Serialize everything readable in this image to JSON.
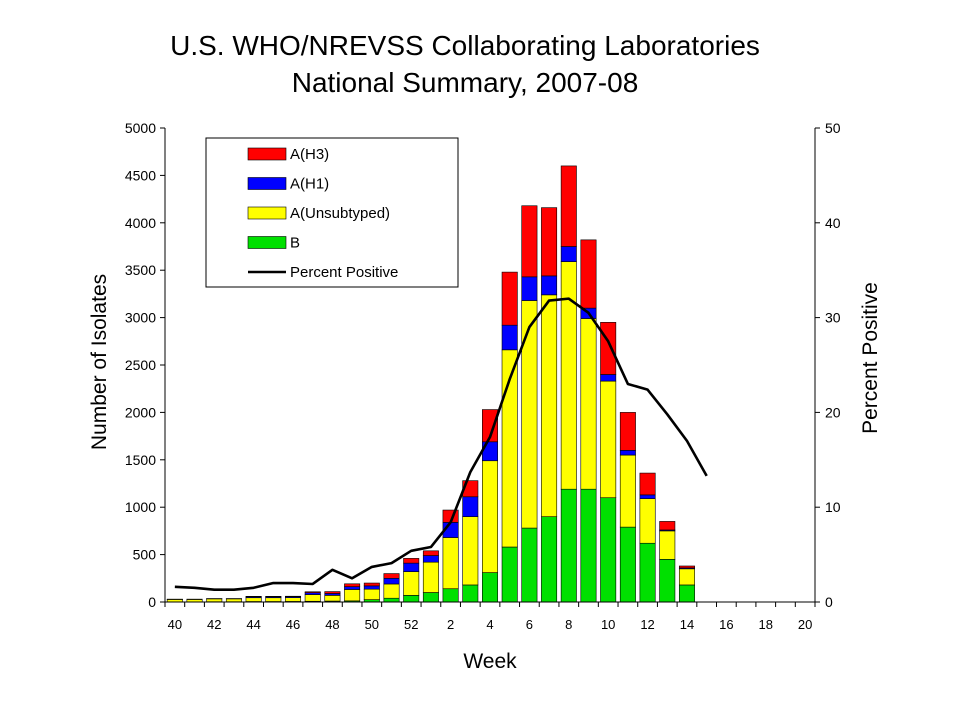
{
  "chart_data": {
    "type": "bar",
    "title": "U.S. WHO/NREVSS Collaborating Laboratories",
    "subtitle": "National Summary, 2007-08",
    "xlabel": "Week",
    "ylabel": "Number of Isolates",
    "y2label": "Percent Positive",
    "ylim": [
      0,
      5000
    ],
    "y2lim": [
      0,
      50
    ],
    "yticks": [
      "0",
      "500",
      "1000",
      "1500",
      "2000",
      "2500",
      "3000",
      "3500",
      "4000",
      "4500",
      "5000"
    ],
    "y2ticks": [
      "0",
      "10",
      "20",
      "30",
      "40",
      "50"
    ],
    "xtick_labels": [
      "40",
      "42",
      "44",
      "46",
      "48",
      "50",
      "52",
      "2",
      "4",
      "6",
      "8",
      "10",
      "12",
      "14",
      "16",
      "18",
      "20"
    ],
    "stacked": true,
    "categories": [
      "40",
      "41",
      "42",
      "43",
      "44",
      "45",
      "46",
      "47",
      "48",
      "49",
      "50",
      "51",
      "52",
      "1",
      "2",
      "3",
      "4",
      "5",
      "6",
      "7",
      "8",
      "9",
      "10",
      "11",
      "12",
      "13",
      "14",
      "15",
      "16",
      "17",
      "18",
      "19",
      "20"
    ],
    "series": [
      {
        "name": "B",
        "color": "#00e000",
        "values": [
          2,
          2,
          3,
          3,
          5,
          5,
          6,
          8,
          10,
          12,
          25,
          40,
          70,
          100,
          140,
          180,
          310,
          580,
          780,
          900,
          1190,
          1190,
          1100,
          790,
          620,
          450,
          180,
          0,
          0,
          0,
          0,
          0,
          0
        ]
      },
      {
        "name": "A(Unsubtyped)",
        "color": "#ffff00",
        "values": [
          25,
          25,
          30,
          30,
          40,
          40,
          40,
          70,
          60,
          120,
          110,
          150,
          250,
          320,
          540,
          720,
          1180,
          2080,
          2400,
          2340,
          2400,
          1800,
          1230,
          760,
          470,
          300,
          170,
          0,
          0,
          0,
          0,
          0,
          0
        ]
      },
      {
        "name": "A(H1)",
        "color": "#0000ff",
        "values": [
          2,
          2,
          2,
          2,
          10,
          10,
          10,
          20,
          20,
          30,
          35,
          60,
          90,
          70,
          160,
          210,
          200,
          260,
          250,
          200,
          160,
          110,
          70,
          50,
          40,
          10,
          10,
          0,
          0,
          0,
          0,
          0,
          0
        ]
      },
      {
        "name": "A(H3)",
        "color": "#ff0000",
        "values": [
          1,
          1,
          1,
          1,
          5,
          5,
          5,
          10,
          20,
          30,
          30,
          50,
          50,
          50,
          130,
          170,
          340,
          560,
          750,
          720,
          850,
          720,
          550,
          400,
          230,
          90,
          20,
          0,
          0,
          0,
          0,
          0,
          0
        ]
      }
    ],
    "line": {
      "name": "Percent Positive",
      "color": "#000000",
      "axis": "right",
      "values": [
        1.6,
        1.5,
        1.3,
        1.3,
        1.5,
        2.0,
        2.0,
        1.9,
        3.4,
        2.5,
        3.7,
        4.1,
        5.4,
        5.8,
        8.4,
        13.7,
        17.4,
        23.5,
        29.0,
        31.8,
        32.0,
        30.5,
        27.5,
        23.0,
        22.4,
        19.8,
        17.0,
        13.3,
        null,
        null,
        null,
        null,
        null
      ]
    },
    "legend": {
      "position": "top-left",
      "entries": [
        "A(H3)",
        "A(H1)",
        "A(Unsubtyped)",
        "B",
        "Percent Positive"
      ]
    },
    "grid": false
  }
}
